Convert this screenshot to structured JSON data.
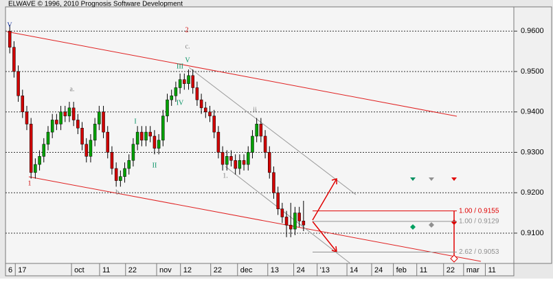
{
  "chart_data": {
    "type": "candlestick",
    "title": "ELWAVE © 1996, 2010 Prognosis Software Development",
    "up_color": "#00a000",
    "down_color": "#d00000",
    "xlim": [
      0,
      119.4
    ],
    "ylim": [
      0.9025,
      0.966
    ],
    "yticks": [
      {
        "value": 0.96,
        "label": "0.9600"
      },
      {
        "value": 0.95,
        "label": "0.9500"
      },
      {
        "value": 0.94,
        "label": "0.9400"
      },
      {
        "value": 0.93,
        "label": "0.9300"
      },
      {
        "value": 0.92,
        "label": "0.9200"
      },
      {
        "value": 0.91,
        "label": "0.9100"
      }
    ],
    "xticks": [
      {
        "value": 0,
        "label": "6"
      },
      {
        "value": 2.3,
        "label": "17"
      },
      {
        "value": 15.5,
        "label": "oct"
      },
      {
        "value": 22.1,
        "label": "11"
      },
      {
        "value": 28.2,
        "label": "22"
      },
      {
        "value": 35.5,
        "label": "nov"
      },
      {
        "value": 41.1,
        "label": "12"
      },
      {
        "value": 48.2,
        "label": "22"
      },
      {
        "value": 54.5,
        "label": "dec"
      },
      {
        "value": 61.6,
        "label": "13"
      },
      {
        "value": 67.7,
        "label": "24"
      },
      {
        "value": 73.2,
        "label": "'13"
      },
      {
        "value": 80.2,
        "label": "14"
      },
      {
        "value": 86,
        "label": "24"
      },
      {
        "value": 91.1,
        "label": "feb"
      },
      {
        "value": 96.6,
        "label": "11"
      },
      {
        "value": 102.9,
        "label": "22"
      },
      {
        "value": 107.6,
        "label": "mar"
      },
      {
        "value": 112.7,
        "label": "11"
      }
    ],
    "grid": true,
    "x": [
      1,
      2,
      3,
      4,
      5,
      6,
      7,
      8,
      9,
      10,
      11,
      12,
      13,
      14,
      15,
      16,
      17,
      18,
      19,
      20,
      21,
      22,
      23,
      24,
      25,
      26,
      27,
      28,
      29,
      30,
      31,
      32,
      33,
      34,
      35,
      36,
      37,
      38,
      39,
      40,
      41,
      42,
      43,
      44,
      45,
      46,
      47,
      48,
      49,
      50,
      51,
      52,
      53,
      54,
      55,
      56,
      57,
      58,
      59,
      60,
      61,
      62,
      63,
      64,
      65,
      66,
      67,
      68,
      69,
      70
    ],
    "open": [
      0.96,
      0.956,
      0.95,
      0.944,
      0.94,
      0.937,
      0.925,
      0.927,
      0.929,
      0.932,
      0.935,
      0.938,
      0.937,
      0.94,
      0.939,
      0.941,
      0.938,
      0.936,
      0.932,
      0.929,
      0.933,
      0.937,
      0.94,
      0.935,
      0.93,
      0.926,
      0.923,
      0.924,
      0.926,
      0.928,
      0.932,
      0.935,
      0.933,
      0.935,
      0.934,
      0.931,
      0.933,
      0.939,
      0.943,
      0.944,
      0.946,
      0.948,
      0.947,
      0.949,
      0.946,
      0.943,
      0.941,
      0.94,
      0.939,
      0.935,
      0.93,
      0.927,
      0.929,
      0.928,
      0.926,
      0.928,
      0.927,
      0.93,
      0.934,
      0.937,
      0.934,
      0.93,
      0.925,
      0.92,
      0.916,
      0.914,
      0.912,
      0.911,
      0.915,
      0.913
    ],
    "high": [
      0.9615,
      0.9575,
      0.9515,
      0.9455,
      0.9415,
      0.9385,
      0.9285,
      0.9305,
      0.9335,
      0.9365,
      0.9395,
      0.9395,
      0.9415,
      0.9415,
      0.9425,
      0.9425,
      0.9395,
      0.9375,
      0.9335,
      0.9345,
      0.9385,
      0.9415,
      0.9415,
      0.9365,
      0.9315,
      0.9275,
      0.9255,
      0.9275,
      0.9295,
      0.9335,
      0.9365,
      0.9365,
      0.9365,
      0.9365,
      0.9355,
      0.9345,
      0.9405,
      0.9445,
      0.9455,
      0.9475,
      0.9495,
      0.9495,
      0.9505,
      0.9505,
      0.9475,
      0.9445,
      0.9425,
      0.9415,
      0.9405,
      0.9365,
      0.9315,
      0.9305,
      0.9305,
      0.9295,
      0.9295,
      0.9295,
      0.9315,
      0.9355,
      0.9385,
      0.9385,
      0.9355,
      0.9315,
      0.9265,
      0.9215,
      0.9175,
      0.9155,
      0.9175,
      0.9165,
      0.9165,
      0.918
    ],
    "low": [
      0.9545,
      0.9485,
      0.9425,
      0.9385,
      0.9355,
      0.9235,
      0.9235,
      0.9255,
      0.9275,
      0.9305,
      0.9335,
      0.9355,
      0.9355,
      0.9375,
      0.9375,
      0.9365,
      0.9345,
      0.9305,
      0.9275,
      0.9275,
      0.9315,
      0.9355,
      0.9335,
      0.9285,
      0.9245,
      0.9215,
      0.9215,
      0.9225,
      0.9245,
      0.9265,
      0.9305,
      0.9315,
      0.9315,
      0.9325,
      0.9295,
      0.9295,
      0.9315,
      0.9375,
      0.9415,
      0.9425,
      0.9445,
      0.9455,
      0.9455,
      0.9445,
      0.9415,
      0.9395,
      0.9385,
      0.9375,
      0.9335,
      0.9285,
      0.9255,
      0.9255,
      0.9265,
      0.9245,
      0.9245,
      0.9255,
      0.9255,
      0.9285,
      0.9325,
      0.9325,
      0.9285,
      0.9235,
      0.9185,
      0.9145,
      0.9125,
      0.909,
      0.909,
      0.9095,
      0.9115,
      0.9105
    ],
    "close": [
      0.956,
      0.95,
      0.944,
      0.94,
      0.937,
      0.925,
      0.927,
      0.929,
      0.932,
      0.935,
      0.938,
      0.937,
      0.94,
      0.939,
      0.941,
      0.938,
      0.936,
      0.932,
      0.929,
      0.933,
      0.937,
      0.94,
      0.935,
      0.93,
      0.926,
      0.923,
      0.924,
      0.926,
      0.928,
      0.932,
      0.935,
      0.933,
      0.935,
      0.934,
      0.931,
      0.933,
      0.939,
      0.943,
      0.944,
      0.946,
      0.948,
      0.947,
      0.949,
      0.946,
      0.943,
      0.941,
      0.94,
      0.939,
      0.935,
      0.93,
      0.927,
      0.929,
      0.928,
      0.926,
      0.928,
      0.927,
      0.93,
      0.934,
      0.937,
      0.934,
      0.93,
      0.925,
      0.92,
      0.916,
      0.914,
      0.912,
      0.911,
      0.915,
      0.913,
      0.912
    ],
    "wave_labels": [
      "V",
      "2",
      "c.",
      "V",
      "III",
      "IV",
      "I",
      "II",
      "a.",
      "1",
      "b.",
      "1.",
      "ii"
    ],
    "fib_levels": [
      {
        "label": "1.00 / 0.9155",
        "price": 0.9155,
        "color": "#e00000"
      },
      {
        "label": "1.00 / 0.9129",
        "price": 0.9129,
        "color": "#909090"
      },
      {
        "label": "2.62 / 0.9053",
        "price": 0.9053,
        "color": "#909090"
      }
    ]
  }
}
